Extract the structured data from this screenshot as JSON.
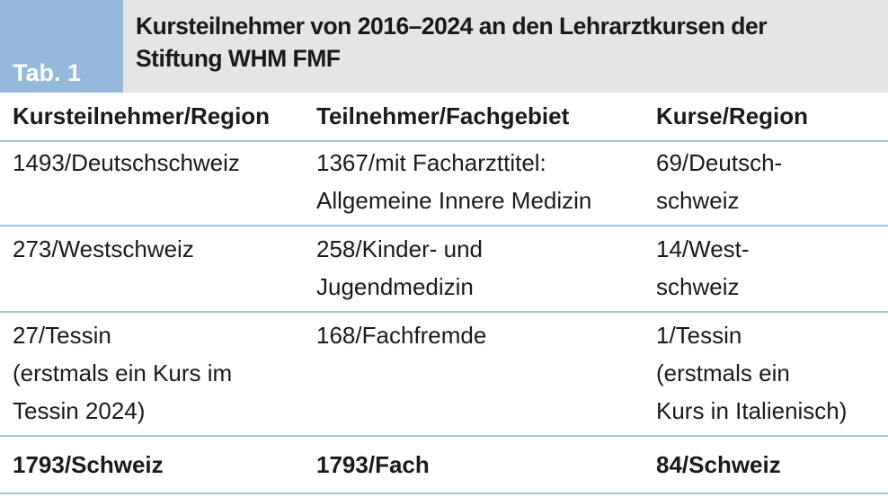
{
  "header": {
    "label": "Tab. 1",
    "title": [
      "Kursteilnehmer von 2016–2024 an den Lehrarztkursen der",
      "Stiftung WHM FMF"
    ]
  },
  "table": {
    "columns": [
      "Kursteilnehmer/Region",
      "Teilnehmer/Fachgebiet",
      "Kurse/Region"
    ],
    "rows": [
      [
        [
          "1493/Deutschschweiz"
        ],
        [
          "1367/mit Facharzttitel:",
          "Allgemeine Innere Medizin"
        ],
        [
          "69/Deutsch-",
          "schweiz"
        ]
      ],
      [
        [
          "273/Westschweiz"
        ],
        [
          "258/Kinder- und",
          "Jugendmedizin"
        ],
        [
          "14/West-",
          "schweiz"
        ]
      ],
      [
        [
          "27/Tessin",
          "(erstmals ein Kurs im",
          "Tessin 2024)"
        ],
        [
          "168/Fachfremde"
        ],
        [
          "1/Tessin",
          "(erstmals ein",
          "Kurs in Italienisch)"
        ]
      ]
    ],
    "totals": [
      "1793/Schweiz",
      "1793/Fach",
      "84/Schweiz"
    ]
  }
}
